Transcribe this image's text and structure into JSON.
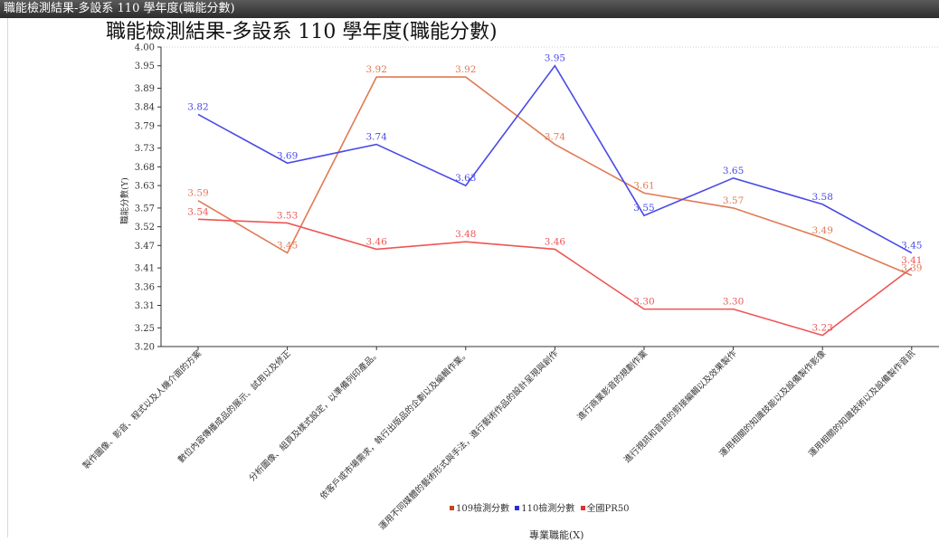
{
  "window": {
    "title": "職能檢測結果-多設系 110 學年度(職能分數)"
  },
  "chart_data": {
    "type": "line",
    "title": "職能檢測結果-多設系 110 學年度(職能分數)",
    "xlabel": "專業職能(X)",
    "ylabel": "職能分數(Y)",
    "ylim": [
      3.2,
      4.0
    ],
    "yticks": [
      "3.20",
      "3.25",
      "3.31",
      "3.36",
      "3.41",
      "3.47",
      "3.52",
      "3.57",
      "3.63",
      "3.68",
      "3.73",
      "3.79",
      "3.84",
      "3.89",
      "3.95",
      "4.00"
    ],
    "grid": false,
    "legend_position": "bottom",
    "categories": [
      "製作圖像、影音、程式以及人機介面的方案",
      "數位內容傳播成品的展示、試用以及修正",
      "分析圖像、組頁及樣式設定，以準備列印產品。",
      "依客戶或市場需求，執行出版品的企劃以及編輯作業。",
      "運用不同媒體的藝術形式與手法，進行藝術作品的設計呈現與創作",
      "進行商業影音的規劃作業",
      "進行視訊和音訊的剪接編輯以及效果製作",
      "運用相關的知識技能以及設備製作影像",
      "運用相關的知識技術以及設備製作音訊"
    ],
    "series": [
      {
        "name": "109檢測分數",
        "color": "#e07a55",
        "values": [
          3.59,
          3.45,
          3.92,
          3.92,
          3.74,
          3.61,
          3.57,
          3.49,
          3.39
        ]
      },
      {
        "name": "110檢測分數",
        "color": "#4a4ae8",
        "values": [
          3.82,
          3.69,
          3.74,
          3.63,
          3.95,
          3.55,
          3.65,
          3.58,
          3.45
        ]
      },
      {
        "name": "全國PR50",
        "color": "#ee5555",
        "values": [
          3.54,
          3.53,
          3.46,
          3.48,
          3.46,
          3.3,
          3.3,
          3.23,
          3.41
        ]
      }
    ],
    "legend_colors": [
      "#c8431c",
      "#2b2bd6",
      "#e23030"
    ]
  }
}
